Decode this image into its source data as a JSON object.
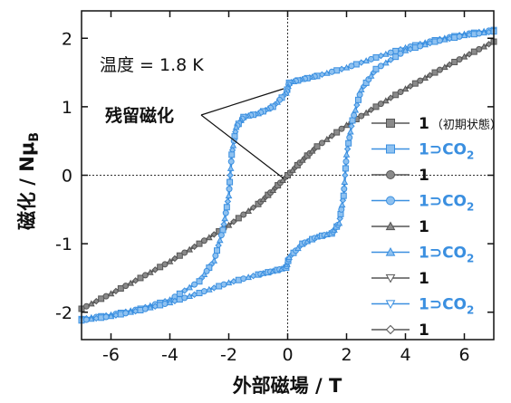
{
  "chart_data": {
    "type": "scatter",
    "title": "",
    "xlabel": "外部磁場 / T",
    "ylabel_main": "磁化 / N",
    "ylabel_mu": "μ",
    "ylabel_sub": "B",
    "xlim": [
      -7,
      7
    ],
    "ylim": [
      -2.4,
      2.4
    ],
    "xticks": [
      -6,
      -4,
      -2,
      0,
      2,
      4,
      6
    ],
    "yticks": [
      -2,
      -1,
      0,
      1,
      2
    ],
    "grid": false,
    "zero_lines": true,
    "annotations": {
      "temperature": "温度 = 1.8 K",
      "remanence": "残留磁化"
    },
    "colors": {
      "gray": "#555555",
      "gray_fill": "#8a8a8a",
      "blue": "#3a8fe0",
      "blue_fill": "#8ec1f0"
    },
    "legend_position": "right",
    "legend": [
      {
        "label": "1",
        "note": "（初期状態）",
        "color": "gray",
        "marker": "square",
        "filled": true
      },
      {
        "label": "1⊃CO",
        "sub": "2",
        "color": "blue",
        "marker": "square",
        "filled": true
      },
      {
        "label": "1",
        "color": "gray",
        "marker": "circle",
        "filled": true
      },
      {
        "label": "1⊃CO",
        "sub": "2",
        "color": "blue",
        "marker": "circle",
        "filled": true
      },
      {
        "label": "1",
        "color": "gray",
        "marker": "triangle-up",
        "filled": true
      },
      {
        "label": "1⊃CO",
        "sub": "2",
        "color": "blue",
        "marker": "triangle-up",
        "filled": true
      },
      {
        "label": "1",
        "color": "gray",
        "marker": "triangle-down",
        "filled": false
      },
      {
        "label": "1⊃CO",
        "sub": "2",
        "color": "blue",
        "marker": "triangle-down",
        "filled": false
      },
      {
        "label": "1",
        "color": "gray",
        "marker": "diamond",
        "filled": false
      }
    ],
    "series": [
      {
        "color": "gray",
        "curve": "no-hysteresis",
        "x": [
          -7,
          -6,
          -5,
          -4,
          -3,
          -2,
          -1,
          -0.5,
          0,
          0.5,
          1,
          2,
          3,
          4,
          5,
          6,
          7
        ],
        "y": [
          -1.95,
          -1.73,
          -1.5,
          -1.26,
          -1.0,
          -0.73,
          -0.42,
          -0.22,
          0.0,
          0.22,
          0.42,
          0.73,
          1.0,
          1.26,
          1.5,
          1.73,
          1.95
        ]
      },
      {
        "color": "blue",
        "curve": "descending-branch",
        "x": [
          7,
          6,
          5,
          4,
          3,
          2,
          1,
          0.5,
          0.05,
          -0.05,
          -0.5,
          -1,
          -1.5,
          -1.75,
          -1.9,
          -2.0,
          -2.2,
          -2.5,
          -3,
          -4,
          -5,
          -6,
          -7
        ],
        "y": [
          2.12,
          2.06,
          1.97,
          1.86,
          1.72,
          1.57,
          1.45,
          1.4,
          1.35,
          1.2,
          1.0,
          0.9,
          0.85,
          0.7,
          0.3,
          -0.3,
          -0.8,
          -1.25,
          -1.55,
          -1.82,
          -1.95,
          -2.04,
          -2.1
        ]
      },
      {
        "color": "blue",
        "curve": "ascending-branch",
        "x": [
          -7,
          -6,
          -5,
          -4,
          -3,
          -2,
          -1,
          -0.5,
          -0.05,
          0.05,
          0.5,
          1,
          1.5,
          1.75,
          1.9,
          2.0,
          2.2,
          2.5,
          3,
          4,
          5,
          6,
          7
        ],
        "y": [
          -2.12,
          -2.06,
          -1.97,
          -1.86,
          -1.72,
          -1.57,
          -1.45,
          -1.4,
          -1.35,
          -1.2,
          -1.0,
          -0.9,
          -0.85,
          -0.7,
          -0.3,
          0.3,
          0.8,
          1.25,
          1.55,
          1.82,
          1.95,
          2.04,
          2.1
        ]
      }
    ]
  }
}
